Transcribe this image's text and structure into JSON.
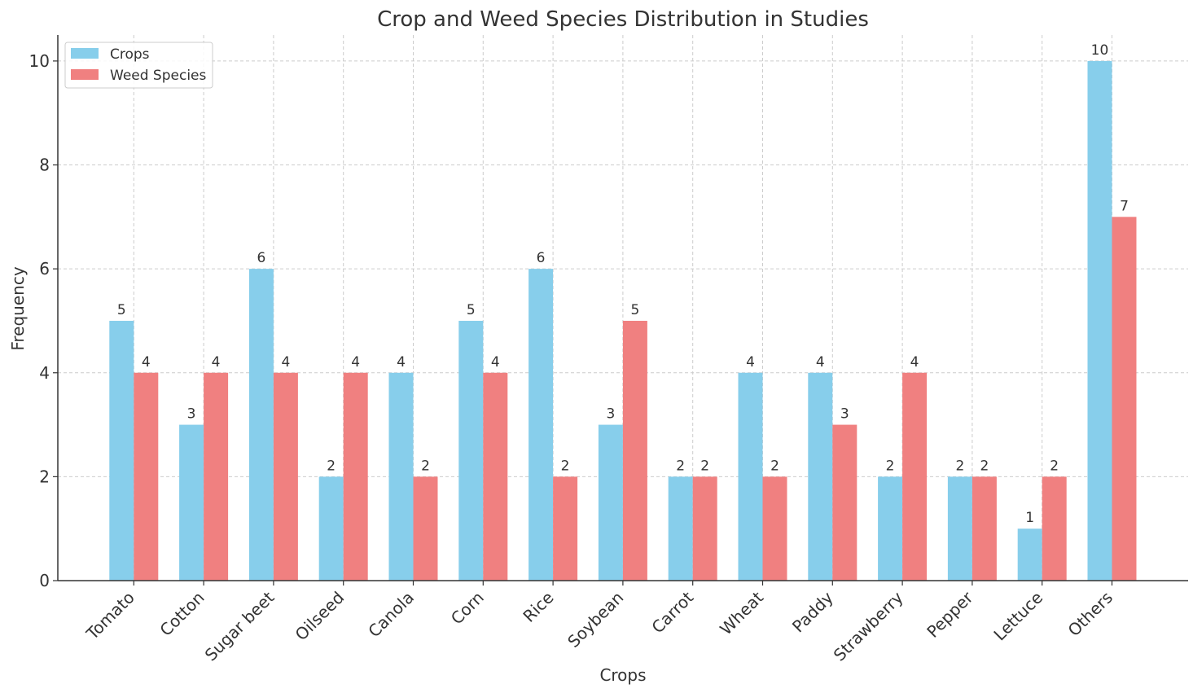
{
  "chart_data": {
    "type": "bar",
    "title": "Crop and Weed Species Distribution in Studies",
    "xlabel": "Crops",
    "ylabel": "Frequency",
    "categories": [
      "Tomato",
      "Cotton",
      "Sugar beet",
      "Oilseed",
      "Canola",
      "Corn",
      "Rice",
      "Soybean",
      "Carrot",
      "Wheat",
      "Paddy",
      "Strawberry",
      "Pepper",
      "Lettuce",
      "Others"
    ],
    "series": [
      {
        "name": "Crops",
        "color": "#87CEEB",
        "values": [
          5,
          3,
          6,
          2,
          4,
          5,
          6,
          3,
          2,
          4,
          4,
          2,
          2,
          1,
          10
        ]
      },
      {
        "name": "Weed Species",
        "color": "#F08080",
        "values": [
          4,
          4,
          4,
          4,
          2,
          4,
          2,
          5,
          2,
          2,
          3,
          4,
          2,
          2,
          7
        ]
      }
    ],
    "ylim": [
      0,
      10.5
    ],
    "yticks": [
      0,
      2,
      4,
      6,
      8,
      10
    ],
    "grid": true,
    "legend_position": "top-left"
  }
}
